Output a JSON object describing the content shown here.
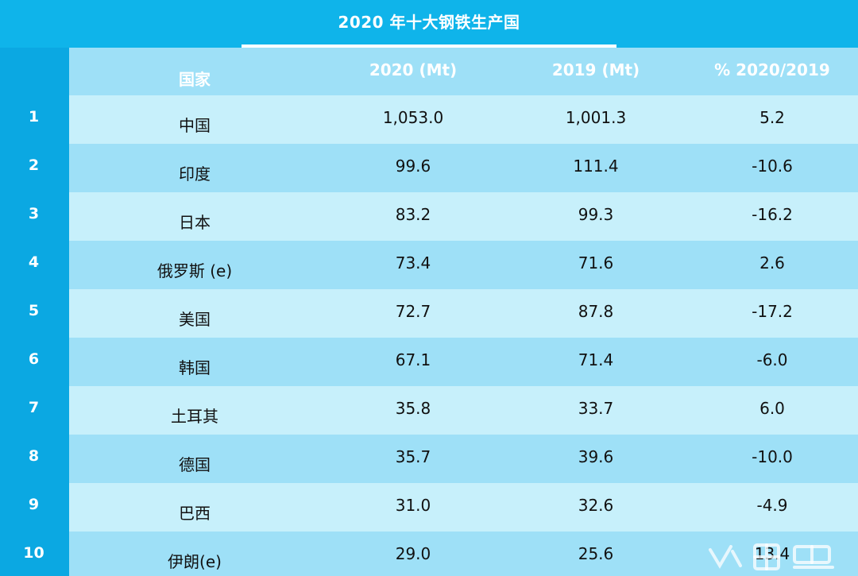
{
  "title": "2020 年十大钢铁生产国",
  "headers": {
    "country": "国家",
    "y2020": "2020 (Mt)",
    "y2019": "2019 (Mt)",
    "pct": "% 2020/2019"
  },
  "rows": [
    {
      "rank": "1",
      "country": "中国",
      "y2020": "1,053.0",
      "y2019": "1,001.3",
      "pct": "5.2"
    },
    {
      "rank": "2",
      "country": "印度",
      "y2020": "99.6",
      "y2019": "111.4",
      "pct": "-10.6"
    },
    {
      "rank": "3",
      "country": "日本",
      "y2020": "83.2",
      "y2019": "99.3",
      "pct": "-16.2"
    },
    {
      "rank": "4",
      "country": "俄罗斯 (e)",
      "y2020": "73.4",
      "y2019": "71.6",
      "pct": "2.6"
    },
    {
      "rank": "5",
      "country": "美国",
      "y2020": "72.7",
      "y2019": "87.8",
      "pct": "-17.2"
    },
    {
      "rank": "6",
      "country": "韩国",
      "y2020": "67.1",
      "y2019": "71.4",
      "pct": "-6.0"
    },
    {
      "rank": "7",
      "country": "土耳其",
      "y2020": "35.8",
      "y2019": "33.7",
      "pct": "6.0"
    },
    {
      "rank": "8",
      "country": "德国",
      "y2020": "35.7",
      "y2019": "39.6",
      "pct": "-10.0"
    },
    {
      "rank": "9",
      "country": "巴西",
      "y2020": "31.0",
      "y2019": "32.6",
      "pct": "-4.9"
    },
    {
      "rank": "10",
      "country": "伊朗(e)",
      "y2020": "29.0",
      "y2019": "25.6",
      "pct": "13.4"
    }
  ],
  "colors": {
    "title_bg": "#0fb4ea",
    "index_bg": "#0ba8e2",
    "row_light": "#c7f0fb",
    "row_dark": "#9ee0f7"
  }
}
